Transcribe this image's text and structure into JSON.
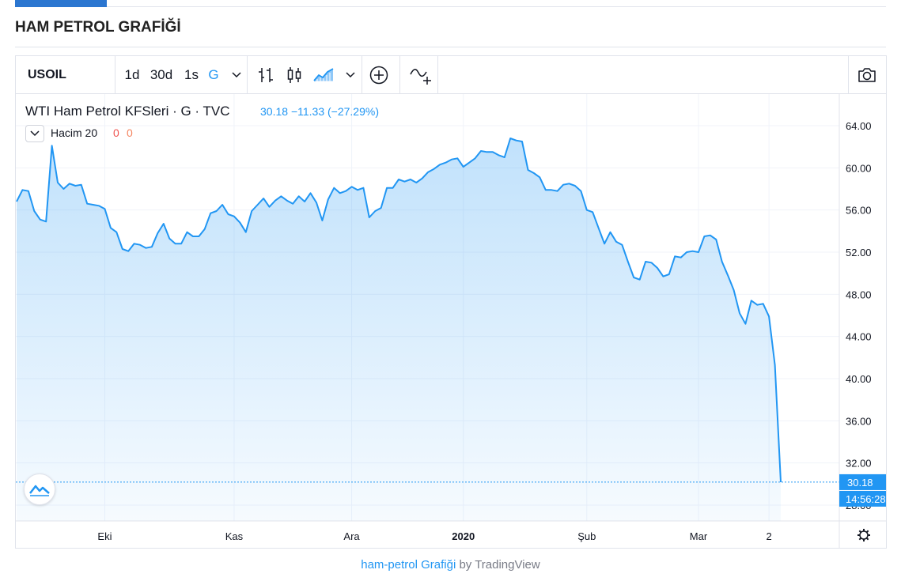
{
  "page": {
    "title": "HAM PETROL GRAFİĞİ"
  },
  "toolbar": {
    "symbol": "USOIL",
    "intervals": [
      "1d",
      "30d",
      "1s",
      "G"
    ],
    "active_interval": "G",
    "icons": [
      "chevron-down-icon",
      "bar-chart-icon",
      "candlestick-icon",
      "area-chart-icon",
      "chevron-down-icon",
      "add-indicator-icon",
      "compare-icon",
      "camera-icon"
    ]
  },
  "legend": {
    "title": "WTI Ham Petrol KFSleri · G · TVC",
    "last": "30.18",
    "change": "−11.33 (−27.29%)",
    "volume_label": "Hacim 20",
    "volume_a": "0",
    "volume_b": "0"
  },
  "footer": {
    "link_text": "ham-petrol Grafiği",
    "by_text": "by TradingView"
  },
  "colors": {
    "line": "#2196f3",
    "accent": "#2b76d0",
    "price_tag": "#2196f3",
    "time_tag": "#2196f3"
  },
  "chart_data": {
    "type": "area",
    "title": "WTI Ham Petrol KFSleri · G · TVC",
    "ylabel": "",
    "xlabel": "",
    "ylim": [
      26.5,
      67.0
    ],
    "yticks": [
      "28.00",
      "32.00",
      "36.00",
      "40.00",
      "44.00",
      "48.00",
      "52.00",
      "56.00",
      "60.00",
      "64.00"
    ],
    "xtick_labels": [
      "Eki",
      "Kas",
      "Ara",
      "2020",
      "Şub",
      "Mar",
      "2"
    ],
    "xtick_index": [
      15,
      37,
      57,
      76,
      97,
      116,
      128
    ],
    "grid": true,
    "last_price_label": "30.18",
    "time_label": "14:56:28",
    "y": [
      56.8,
      57.9,
      57.8,
      55.9,
      55.1,
      54.9,
      62.1,
      58.6,
      58.0,
      58.5,
      58.3,
      58.4,
      56.6,
      56.5,
      56.4,
      56.1,
      54.3,
      53.9,
      52.3,
      52.1,
      52.8,
      52.7,
      52.4,
      52.5,
      53.8,
      54.7,
      53.3,
      52.8,
      52.8,
      53.9,
      53.5,
      53.5,
      54.2,
      55.7,
      55.9,
      56.5,
      55.6,
      55.4,
      54.8,
      53.9,
      55.9,
      56.5,
      57.1,
      56.3,
      56.9,
      57.3,
      56.9,
      56.6,
      57.3,
      56.8,
      57.6,
      56.7,
      55.0,
      57.0,
      58.1,
      57.6,
      57.8,
      58.2,
      57.9,
      58.1,
      55.3,
      55.9,
      56.2,
      58.1,
      58.1,
      58.9,
      58.7,
      58.9,
      58.6,
      59.0,
      59.6,
      59.9,
      60.3,
      60.5,
      60.8,
      60.9,
      60.1,
      60.5,
      60.9,
      61.6,
      61.5,
      61.5,
      61.2,
      61.0,
      62.8,
      62.6,
      62.5,
      59.8,
      59.5,
      59.1,
      57.9,
      57.9,
      57.8,
      58.4,
      58.5,
      58.3,
      57.8,
      56.0,
      55.8,
      54.3,
      52.8,
      53.9,
      53.0,
      52.7,
      51.1,
      49.6,
      49.4,
      51.1,
      51.0,
      50.5,
      49.7,
      49.9,
      51.6,
      51.5,
      52.0,
      52.1,
      52.0,
      53.5,
      53.6,
      53.2,
      51.1,
      49.8,
      48.4,
      46.2,
      45.2,
      47.4,
      47.0,
      47.1,
      45.9,
      41.3,
      30.18
    ]
  }
}
